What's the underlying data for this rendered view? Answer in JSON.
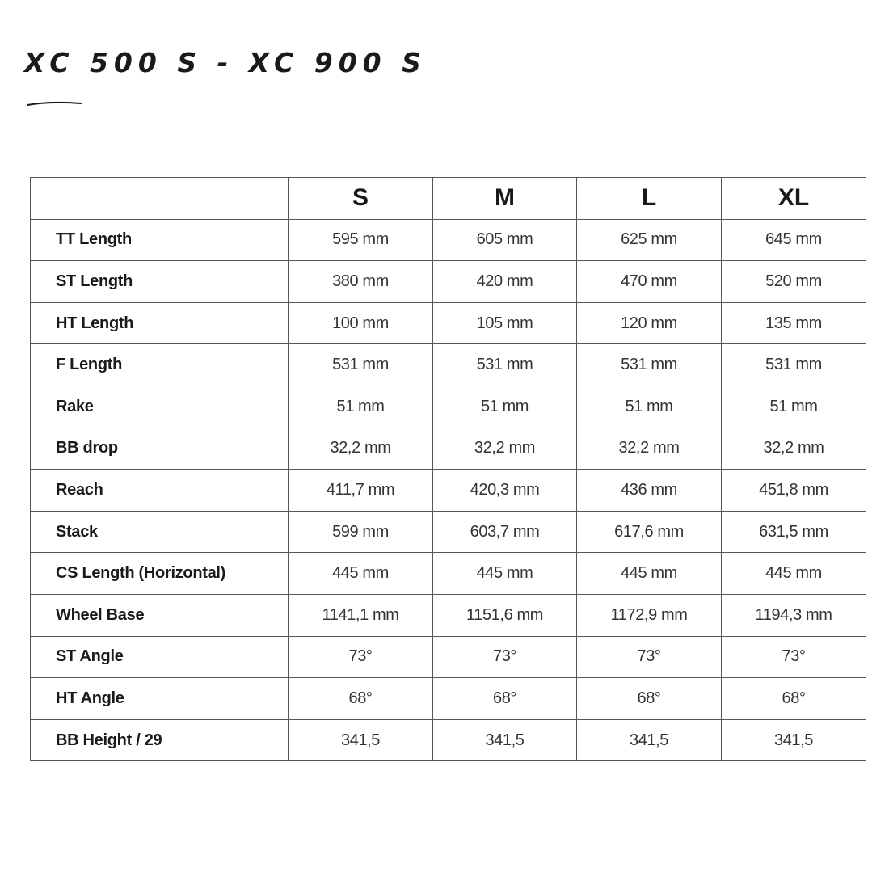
{
  "title": "XC 500 S - XC 900 S",
  "table": {
    "columns": [
      "",
      "S",
      "M",
      "L",
      "XL"
    ],
    "rows": [
      {
        "label": "TT Length",
        "values": [
          "595 mm",
          "605 mm",
          "625 mm",
          "645 mm"
        ]
      },
      {
        "label": "ST Length",
        "values": [
          "380 mm",
          "420 mm",
          "470 mm",
          "520 mm"
        ]
      },
      {
        "label": "HT Length",
        "values": [
          "100 mm",
          "105 mm",
          "120 mm",
          "135 mm"
        ]
      },
      {
        "label": "F Length",
        "values": [
          "531 mm",
          "531 mm",
          "531 mm",
          "531 mm"
        ]
      },
      {
        "label": "Rake",
        "values": [
          "51 mm",
          "51 mm",
          "51 mm",
          "51 mm"
        ]
      },
      {
        "label": "BB drop",
        "values": [
          "32,2 mm",
          "32,2 mm",
          "32,2 mm",
          "32,2 mm"
        ]
      },
      {
        "label": "Reach",
        "values": [
          "411,7 mm",
          "420,3 mm",
          "436 mm",
          "451,8 mm"
        ]
      },
      {
        "label": "Stack",
        "values": [
          "599 mm",
          "603,7 mm",
          "617,6 mm",
          "631,5 mm"
        ]
      },
      {
        "label": "CS Length (Horizontal)",
        "values": [
          "445 mm",
          "445 mm",
          "445 mm",
          "445 mm"
        ]
      },
      {
        "label": "Wheel Base",
        "values": [
          "1141,1 mm",
          "1151,6 mm",
          "1172,9 mm",
          "1194,3 mm"
        ]
      },
      {
        "label": "ST Angle",
        "values": [
          "73°",
          "73°",
          "73°",
          "73°"
        ]
      },
      {
        "label": "HT Angle",
        "values": [
          "68°",
          "68°",
          "68°",
          "68°"
        ]
      },
      {
        "label": "BB Height / 29",
        "values": [
          "341,5",
          "341,5",
          "341,5",
          "341,5"
        ]
      }
    ]
  }
}
